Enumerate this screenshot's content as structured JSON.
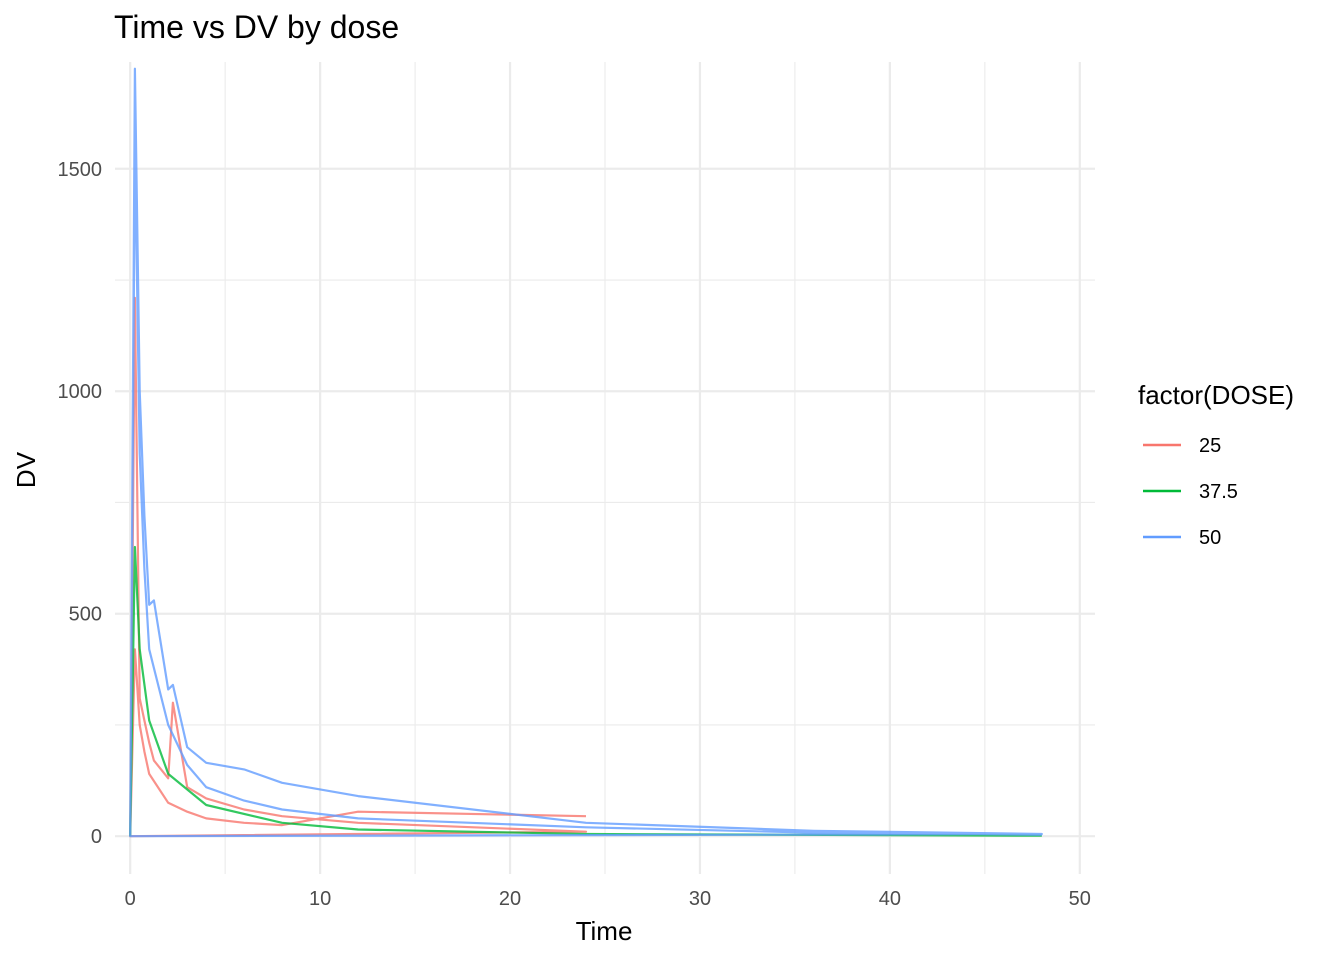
{
  "chart_data": {
    "type": "line",
    "title": "Time vs DV by dose",
    "xlabel": "Time",
    "ylabel": "DV",
    "xlim": [
      -0.8,
      50.8
    ],
    "ylim": [
      -85,
      1740
    ],
    "x_ticks": [
      0,
      10,
      20,
      30,
      40,
      50
    ],
    "x_tick_labels": [
      "0",
      "10",
      "20",
      "30",
      "40",
      "50"
    ],
    "y_ticks": [
      0,
      500,
      1000,
      1500
    ],
    "y_tick_labels": [
      "0",
      "500",
      "1000",
      "1500"
    ],
    "grid": true,
    "legend": {
      "title": "factor(DOSE)",
      "position": "right",
      "entries": [
        {
          "label": "25",
          "color": "#F8766D"
        },
        {
          "label": "37.5",
          "color": "#00BA38"
        },
        {
          "label": "50",
          "color": "#619CFF"
        }
      ]
    },
    "series": [
      {
        "name": "25",
        "color": "#F8766D",
        "values": [
          {
            "x": 0,
            "y": 0
          },
          {
            "x": 0.25,
            "y": 1210
          },
          {
            "x": 0.5,
            "y": 310
          },
          {
            "x": 0.75,
            "y": 260
          },
          {
            "x": 1,
            "y": 210
          },
          {
            "x": 1.25,
            "y": 170
          },
          {
            "x": 2,
            "y": 130
          },
          {
            "x": 2.25,
            "y": 300
          },
          {
            "x": 3,
            "y": 110
          },
          {
            "x": 4,
            "y": 85
          },
          {
            "x": 6,
            "y": 60
          },
          {
            "x": 8,
            "y": 45
          },
          {
            "x": 12,
            "y": 30
          },
          {
            "x": 24,
            "y": 10
          },
          {
            "x": 0,
            "y": 0
          },
          {
            "x": 0.25,
            "y": 420
          },
          {
            "x": 0.5,
            "y": 250
          },
          {
            "x": 0.75,
            "y": 190
          },
          {
            "x": 1,
            "y": 140
          },
          {
            "x": 2,
            "y": 75
          },
          {
            "x": 3,
            "y": 55
          },
          {
            "x": 4,
            "y": 40
          },
          {
            "x": 6,
            "y": 30
          },
          {
            "x": 8,
            "y": 25
          },
          {
            "x": 12,
            "y": 55
          },
          {
            "x": 24,
            "y": 45
          }
        ]
      },
      {
        "name": "37.5",
        "color": "#00BA38",
        "values": [
          {
            "x": 0,
            "y": 0
          },
          {
            "x": 0.25,
            "y": 650
          },
          {
            "x": 0.5,
            "y": 420
          },
          {
            "x": 1,
            "y": 260
          },
          {
            "x": 2,
            "y": 140
          },
          {
            "x": 4,
            "y": 70
          },
          {
            "x": 8,
            "y": 30
          },
          {
            "x": 12,
            "y": 15
          },
          {
            "x": 24,
            "y": 5
          },
          {
            "x": 48,
            "y": 1
          }
        ]
      },
      {
        "name": "50",
        "color": "#619CFF",
        "values": [
          {
            "x": 0,
            "y": 0
          },
          {
            "x": 0.25,
            "y": 1725
          },
          {
            "x": 0.5,
            "y": 1000
          },
          {
            "x": 0.75,
            "y": 720
          },
          {
            "x": 1,
            "y": 520
          },
          {
            "x": 1.25,
            "y": 530
          },
          {
            "x": 2,
            "y": 330
          },
          {
            "x": 2.25,
            "y": 340
          },
          {
            "x": 3,
            "y": 200
          },
          {
            "x": 4,
            "y": 165
          },
          {
            "x": 6,
            "y": 150
          },
          {
            "x": 8,
            "y": 120
          },
          {
            "x": 12,
            "y": 90
          },
          {
            "x": 24,
            "y": 30
          },
          {
            "x": 36,
            "y": 12
          },
          {
            "x": 48,
            "y": 5
          },
          {
            "x": 0,
            "y": 0
          },
          {
            "x": 0.25,
            "y": 1560
          },
          {
            "x": 0.5,
            "y": 860
          },
          {
            "x": 0.75,
            "y": 600
          },
          {
            "x": 1,
            "y": 420
          },
          {
            "x": 2,
            "y": 250
          },
          {
            "x": 3,
            "y": 160
          },
          {
            "x": 4,
            "y": 110
          },
          {
            "x": 6,
            "y": 80
          },
          {
            "x": 8,
            "y": 60
          },
          {
            "x": 12,
            "y": 40
          },
          {
            "x": 24,
            "y": 20
          },
          {
            "x": 36,
            "y": 8
          },
          {
            "x": 48,
            "y": 3
          }
        ]
      }
    ]
  }
}
